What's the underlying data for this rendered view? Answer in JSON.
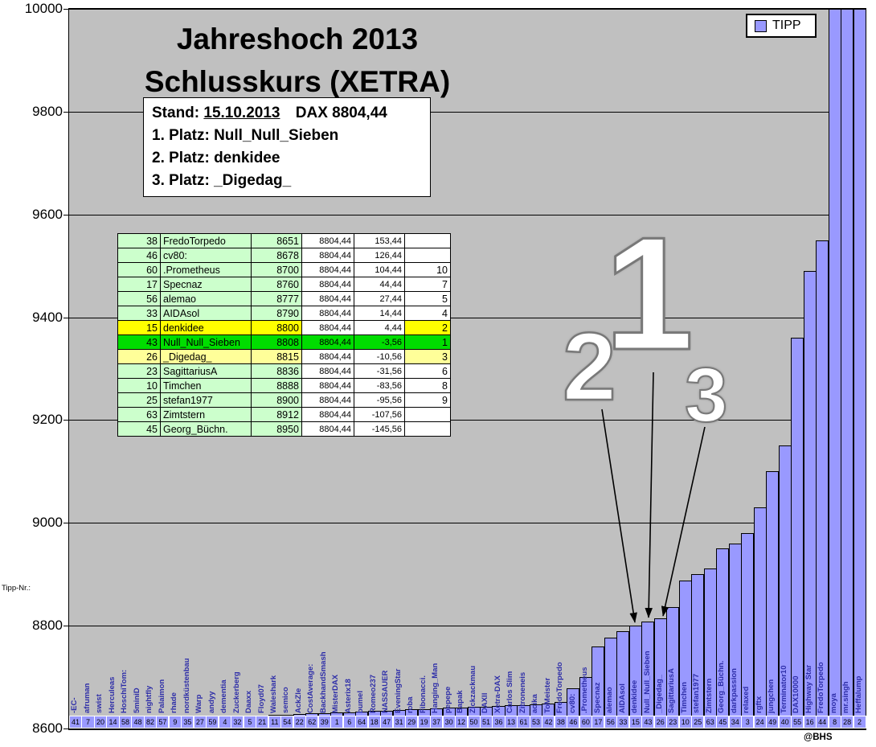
{
  "title": {
    "line1": "Jahreshoch 2013",
    "line2": "Schlusskurs (XETRA)"
  },
  "legend": {
    "label": "TIPP"
  },
  "info_box": {
    "stand_label": "Stand:",
    "stand_date": "15.10.2013",
    "stand_dax": "DAX 8804,44",
    "platz1": "1. Platz: Null_Null_Sieben",
    "platz2": "2. Platz: denkidee",
    "platz3": "3. Platz: _Digedag_"
  },
  "annotations": {
    "rank1": "1",
    "rank2": "2",
    "rank3": "3"
  },
  "axis": {
    "x_caption": "Tipp-Nr.:"
  },
  "watermark": "@BHS",
  "colors": {
    "bar_fill": "#9999ff",
    "plot_bg": "#c0c0c0",
    "row_light_green": "#ccffcc",
    "row_yellow": "#ffff00",
    "row_green": "#00dd00",
    "row_pale_yellow": "#ffff99"
  },
  "ranking_table": {
    "rows": [
      {
        "nr": "38",
        "name": "FredoTorpedo",
        "tipp": "8651",
        "dax": "8804,44",
        "diff": "153,44",
        "platz": "",
        "hl": "none"
      },
      {
        "nr": "46",
        "name": "cv80:",
        "tipp": "8678",
        "dax": "8804,44",
        "diff": "126,44",
        "platz": "",
        "hl": "none"
      },
      {
        "nr": "60",
        "name": ".Prometheus",
        "tipp": "8700",
        "dax": "8804,44",
        "diff": "104,44",
        "platz": "10",
        "hl": "none"
      },
      {
        "nr": "17",
        "name": "Specnaz",
        "tipp": "8760",
        "dax": "8804,44",
        "diff": "44,44",
        "platz": "7",
        "hl": "none"
      },
      {
        "nr": "56",
        "name": "alemao",
        "tipp": "8777",
        "dax": "8804,44",
        "diff": "27,44",
        "platz": "5",
        "hl": "none"
      },
      {
        "nr": "33",
        "name": "AIDAsol",
        "tipp": "8790",
        "dax": "8804,44",
        "diff": "14,44",
        "platz": "4",
        "hl": "none"
      },
      {
        "nr": "15",
        "name": "denkidee",
        "tipp": "8800",
        "dax": "8804,44",
        "diff": "4,44",
        "platz": "2",
        "hl": "yellow"
      },
      {
        "nr": "43",
        "name": "Null_Null_Sieben",
        "tipp": "8808",
        "dax": "8804,44",
        "diff": "-3,56",
        "platz": "1",
        "hl": "green"
      },
      {
        "nr": "26",
        "name": "_Digedag_",
        "tipp": "8815",
        "dax": "8804,44",
        "diff": "-10,56",
        "platz": "3",
        "hl": "pale"
      },
      {
        "nr": "23",
        "name": "SagittariusA",
        "tipp": "8836",
        "dax": "8804,44",
        "diff": "-31,56",
        "platz": "6",
        "hl": "none"
      },
      {
        "nr": "10",
        "name": "Timchen",
        "tipp": "8888",
        "dax": "8804,44",
        "diff": "-83,56",
        "platz": "8",
        "hl": "none"
      },
      {
        "nr": "25",
        "name": "stefan1977",
        "tipp": "8900",
        "dax": "8804,44",
        "diff": "-95,56",
        "platz": "9",
        "hl": "none"
      },
      {
        "nr": "63",
        "name": "Zimtstern",
        "tipp": "8912",
        "dax": "8804,44",
        "diff": "-107,56",
        "platz": "",
        "hl": "none"
      },
      {
        "nr": "45",
        "name": "Georg_Büchn.",
        "tipp": "8950",
        "dax": "8804,44",
        "diff": "-145,56",
        "platz": "",
        "hl": "none"
      }
    ]
  },
  "chart_data": {
    "type": "bar",
    "title": "Jahreshoch 2013 — Schlusskurs (XETRA)",
    "series_name": "TIPP",
    "ylim": [
      8600,
      10000
    ],
    "y_ticks": [
      8600,
      8800,
      9000,
      9200,
      9400,
      9600,
      9800,
      10000
    ],
    "x_axis_caption": "Tipp-Nr.:",
    "grid": true,
    "legend_position": "top-right",
    "note": "Bars are sorted ascending by tipp. Values not listed in the ranking table are estimated from bar pixel heights.",
    "bars": [
      {
        "nr": 41,
        "name": "-EC-",
        "tipp": 8605,
        "est": true
      },
      {
        "nr": 7,
        "name": "afruman",
        "tipp": 8607,
        "est": true
      },
      {
        "nr": 20,
        "name": "swist",
        "tipp": 8609,
        "est": true
      },
      {
        "nr": 14,
        "name": "Herculeas",
        "tipp": 8611,
        "est": true
      },
      {
        "nr": 58,
        "name": "HoschiTom:",
        "tipp": 8613,
        "est": true
      },
      {
        "nr": 48,
        "name": "5miniD",
        "tipp": 8615,
        "est": true
      },
      {
        "nr": 82,
        "name": "nightfly",
        "tipp": 8616,
        "est": true
      },
      {
        "nr": 57,
        "name": "Palaimon",
        "tipp": 8617,
        "est": true
      },
      {
        "nr": 9,
        "name": "rhade",
        "tipp": 8618,
        "est": true
      },
      {
        "nr": 35,
        "name": "nordküstenbau",
        "tipp": 8619,
        "est": true
      },
      {
        "nr": 27,
        "name": "Warp",
        "tipp": 8620,
        "est": true
      },
      {
        "nr": 59,
        "name": "andyy",
        "tipp": 8621,
        "est": true
      },
      {
        "nr": 4,
        "name": "dementia",
        "tipp": 8622,
        "est": true
      },
      {
        "nr": 32,
        "name": "Zuckerberg",
        "tipp": 8623,
        "est": true
      },
      {
        "nr": 5,
        "name": "Daaxx",
        "tipp": 8624,
        "est": true
      },
      {
        "nr": 21,
        "name": "Floyd07",
        "tipp": 8625,
        "est": true
      },
      {
        "nr": 11,
        "name": "Waleshark",
        "tipp": 8626,
        "est": true
      },
      {
        "nr": 54,
        "name": "semico",
        "tipp": 8627,
        "est": true
      },
      {
        "nr": 22,
        "name": "AckZle",
        "tipp": 8628,
        "est": true
      },
      {
        "nr": 62,
        "name": "CostAverage:",
        "tipp": 8629,
        "est": true
      },
      {
        "nr": 39,
        "name": "BackhandSmash",
        "tipp": 8630,
        "est": true
      },
      {
        "nr": 1,
        "name": "MisterDAX",
        "tipp": 8631,
        "est": true
      },
      {
        "nr": 6,
        "name": "Asterix18",
        "tipp": 8632,
        "est": true
      },
      {
        "nr": 64,
        "name": "bumel",
        "tipp": 8633,
        "est": true
      },
      {
        "nr": 18,
        "name": "Romeo237",
        "tipp": 8634,
        "est": true
      },
      {
        "nr": 47,
        "name": "NASSAUER",
        "tipp": 8635,
        "est": true
      },
      {
        "nr": 31,
        "name": "EveningStar",
        "tipp": 8636,
        "est": true
      },
      {
        "nr": 29,
        "name": "roba",
        "tipp": 8637,
        "est": true
      },
      {
        "nr": 19,
        "name": "Fibonacci.",
        "tipp": 8638,
        "est": true
      },
      {
        "nr": 37,
        "name": "Hanging_Man",
        "tipp": 8639,
        "est": true
      },
      {
        "nr": 30,
        "name": "pepepe",
        "tipp": 8640,
        "est": true
      },
      {
        "nr": 12,
        "name": "Bapak",
        "tipp": 8641,
        "est": true
      },
      {
        "nr": 50,
        "name": "Zickzackmau",
        "tipp": 8642,
        "est": true
      },
      {
        "nr": 51,
        "name": "DAXII",
        "tipp": 8643,
        "est": true
      },
      {
        "nr": 36,
        "name": "Xetra-DAX",
        "tipp": 8644,
        "est": true
      },
      {
        "nr": 13,
        "name": "Carlos Slim",
        "tipp": 8645,
        "est": true
      },
      {
        "nr": 61,
        "name": "Zitroneneis",
        "tipp": 8646,
        "est": true
      },
      {
        "nr": 53,
        "name": "acika",
        "tipp": 8647,
        "est": true
      },
      {
        "nr": 42,
        "name": "ToMeister",
        "tipp": 8648,
        "est": true
      },
      {
        "nr": 38,
        "name": "FredoTorpedo",
        "tipp": 8651
      },
      {
        "nr": 46,
        "name": "cv80:",
        "tipp": 8678
      },
      {
        "nr": 60,
        "name": ".Prometheus",
        "tipp": 8700
      },
      {
        "nr": 17,
        "name": "Specnaz",
        "tipp": 8760
      },
      {
        "nr": 56,
        "name": "alemao",
        "tipp": 8777
      },
      {
        "nr": 33,
        "name": "AIDAsol",
        "tipp": 8790
      },
      {
        "nr": 15,
        "name": "denkidee",
        "tipp": 8800
      },
      {
        "nr": 43,
        "name": "Null_Null_Sieben",
        "tipp": 8808
      },
      {
        "nr": 26,
        "name": "_Digedag_",
        "tipp": 8815
      },
      {
        "nr": 23,
        "name": "SagittariusA",
        "tipp": 8836
      },
      {
        "nr": 10,
        "name": "Timchen",
        "tipp": 8888
      },
      {
        "nr": 25,
        "name": "stefan1977",
        "tipp": 8900
      },
      {
        "nr": 63,
        "name": "Zimtstern",
        "tipp": 8912
      },
      {
        "nr": 45,
        "name": "Georg_Büchn.",
        "tipp": 8950
      },
      {
        "nr": 34,
        "name": "darkpassion",
        "tipp": 8960,
        "est": true
      },
      {
        "nr": 3,
        "name": "relaxed",
        "tipp": 8980,
        "est": true
      },
      {
        "nr": 24,
        "name": "rgftx",
        "tipp": 9030,
        "est": true
      },
      {
        "nr": 49,
        "name": "jungchen",
        "tipp": 9100,
        "est": true
      },
      {
        "nr": 40,
        "name": "Terminator10",
        "tipp": 9150,
        "est": true
      },
      {
        "nr": 55,
        "name": "DAX10000",
        "tipp": 9360,
        "est": true
      },
      {
        "nr": 16,
        "name": "Highway Star",
        "tipp": 9490,
        "est": true
      },
      {
        "nr": 44,
        "name": "FredoTorpedo",
        "tipp": 9550,
        "est": true
      },
      {
        "nr": 8,
        "name": "moya",
        "tipp": 10000,
        "est": true
      },
      {
        "nr": 28,
        "name": "mr.singh",
        "tipp": 10000,
        "est": true
      },
      {
        "nr": 2,
        "name": "Heffalump",
        "tipp": 10000,
        "est": true
      }
    ]
  }
}
